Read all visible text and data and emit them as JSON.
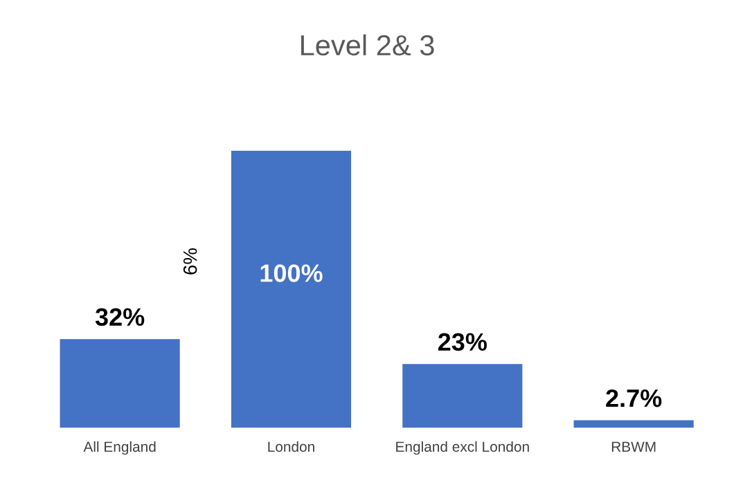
{
  "chart_data": {
    "type": "bar",
    "title": "Level 2& 3",
    "categories": [
      "All England",
      "London",
      "England excl London",
      "RBWM"
    ],
    "values": [
      32,
      100,
      23,
      2.7
    ],
    "value_labels": [
      "32%",
      "100%",
      "23%",
      "2.7%"
    ],
    "color": "#4472c4",
    "annotations": [
      "6%"
    ]
  }
}
